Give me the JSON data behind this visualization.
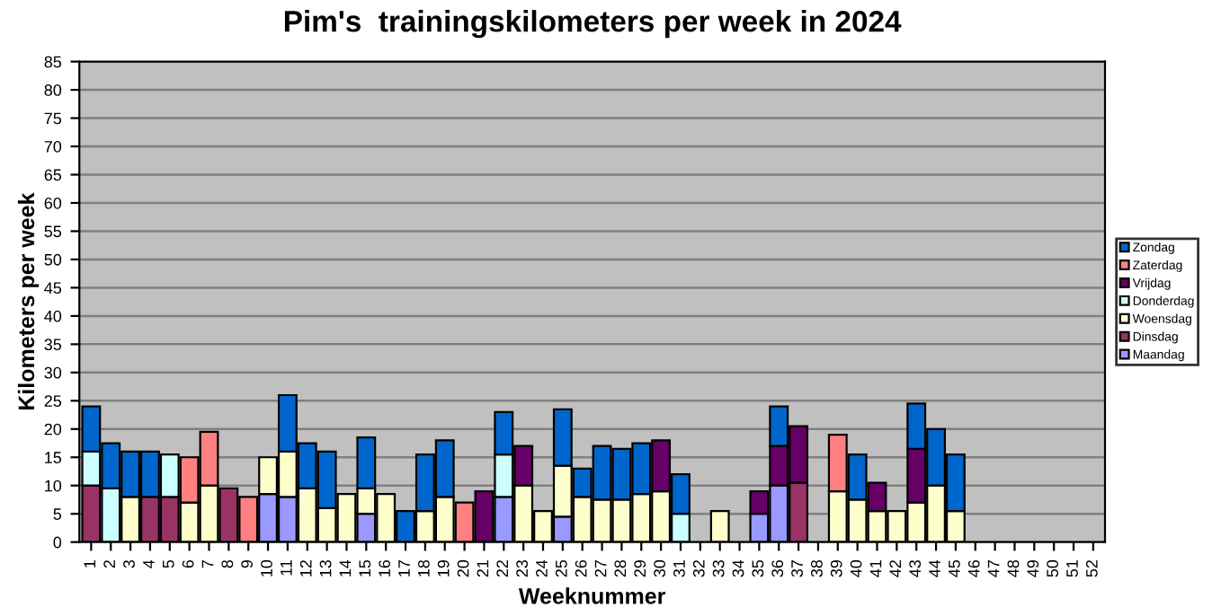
{
  "chart_data": {
    "type": "bar",
    "stacked": true,
    "title": "Pim's  trainingskilometers per week in 2024",
    "xlabel": "Weeknummer",
    "ylabel": "Kilometers per week",
    "categories": [
      "1",
      "2",
      "3",
      "4",
      "5",
      "6",
      "7",
      "8",
      "9",
      "10",
      "11",
      "12",
      "13",
      "14",
      "15",
      "16",
      "17",
      "18",
      "19",
      "20",
      "21",
      "22",
      "23",
      "24",
      "25",
      "26",
      "27",
      "28",
      "29",
      "30",
      "31",
      "32",
      "33",
      "34",
      "35",
      "36",
      "37",
      "38",
      "39",
      "40",
      "41",
      "42",
      "43",
      "44",
      "45",
      "46",
      "47",
      "48",
      "49",
      "50",
      "51",
      "52"
    ],
    "series": [
      {
        "name": "Maandag",
        "color": "#9999ff",
        "values": [
          null,
          null,
          null,
          null,
          null,
          null,
          null,
          null,
          null,
          8.5,
          8,
          null,
          null,
          null,
          5,
          null,
          null,
          null,
          null,
          null,
          null,
          8,
          null,
          null,
          4.5,
          null,
          null,
          null,
          null,
          null,
          null,
          null,
          null,
          null,
          5,
          10,
          null,
          null,
          null,
          null,
          null,
          null,
          null,
          null,
          null,
          null,
          null,
          null,
          null,
          null,
          null,
          null
        ]
      },
      {
        "name": "Dinsdag",
        "color": "#993366",
        "values": [
          10,
          null,
          null,
          8,
          8,
          null,
          null,
          9.5,
          null,
          null,
          null,
          null,
          null,
          null,
          null,
          null,
          null,
          null,
          null,
          null,
          null,
          null,
          null,
          null,
          null,
          null,
          null,
          null,
          null,
          null,
          null,
          null,
          null,
          null,
          null,
          null,
          10.5,
          null,
          null,
          null,
          null,
          null,
          null,
          null,
          null,
          null,
          null,
          null,
          null,
          null,
          null,
          null
        ]
      },
      {
        "name": "Woensdag",
        "color": "#ffffcc",
        "values": [
          null,
          null,
          8,
          null,
          null,
          7,
          10,
          null,
          null,
          6.5,
          8,
          9.5,
          6,
          8.5,
          4.5,
          8.5,
          null,
          5.5,
          8,
          null,
          null,
          null,
          10,
          5.5,
          9,
          8,
          7.5,
          7.5,
          8.5,
          9,
          null,
          null,
          5.5,
          null,
          null,
          null,
          null,
          null,
          9,
          7.5,
          5.5,
          5.5,
          7,
          10,
          5.5,
          null,
          null,
          null,
          null,
          null,
          null,
          null
        ]
      },
      {
        "name": "Donderdag",
        "color": "#ccffff",
        "values": [
          6,
          9.5,
          null,
          null,
          7.5,
          null,
          null,
          null,
          null,
          null,
          null,
          null,
          null,
          null,
          null,
          null,
          null,
          null,
          null,
          null,
          null,
          7.5,
          null,
          null,
          null,
          null,
          null,
          null,
          null,
          null,
          5,
          null,
          null,
          null,
          null,
          null,
          null,
          null,
          null,
          null,
          null,
          null,
          null,
          null,
          null,
          null,
          null,
          null,
          null,
          null,
          null,
          null
        ]
      },
      {
        "name": "Vrijdag",
        "color": "#660066",
        "values": [
          null,
          null,
          null,
          null,
          null,
          null,
          null,
          null,
          null,
          null,
          null,
          null,
          null,
          null,
          null,
          null,
          null,
          null,
          null,
          null,
          9,
          null,
          7,
          null,
          null,
          null,
          null,
          null,
          null,
          9,
          null,
          null,
          null,
          null,
          4,
          7,
          10,
          null,
          null,
          null,
          5,
          null,
          9.5,
          null,
          null,
          null,
          null,
          null,
          null,
          null,
          null,
          null
        ]
      },
      {
        "name": "Zaterdag",
        "color": "#ff8080",
        "values": [
          null,
          null,
          null,
          null,
          null,
          8,
          9.5,
          null,
          8,
          null,
          null,
          null,
          null,
          null,
          null,
          null,
          null,
          null,
          null,
          7,
          null,
          null,
          null,
          null,
          null,
          null,
          null,
          null,
          null,
          null,
          null,
          null,
          null,
          null,
          null,
          null,
          null,
          null,
          10,
          null,
          null,
          null,
          null,
          null,
          null,
          null,
          null,
          null,
          null,
          null,
          null,
          null
        ]
      },
      {
        "name": "Zondag",
        "color": "#0066cc",
        "values": [
          8,
          8,
          8,
          8,
          null,
          null,
          null,
          null,
          null,
          null,
          10,
          8,
          10,
          null,
          9,
          null,
          5.5,
          10,
          10,
          null,
          null,
          7.5,
          null,
          null,
          10,
          5,
          9.5,
          9,
          9,
          null,
          7,
          null,
          null,
          null,
          null,
          7,
          null,
          null,
          null,
          8,
          null,
          null,
          8,
          10,
          10,
          null,
          null,
          null,
          null,
          null,
          null,
          null
        ]
      }
    ],
    "ylim": [
      0,
      85
    ],
    "yticks": [
      0,
      5,
      10,
      15,
      20,
      25,
      30,
      35,
      40,
      45,
      50,
      55,
      60,
      65,
      70,
      75,
      80,
      85
    ],
    "grid": "y",
    "legend": "right"
  }
}
